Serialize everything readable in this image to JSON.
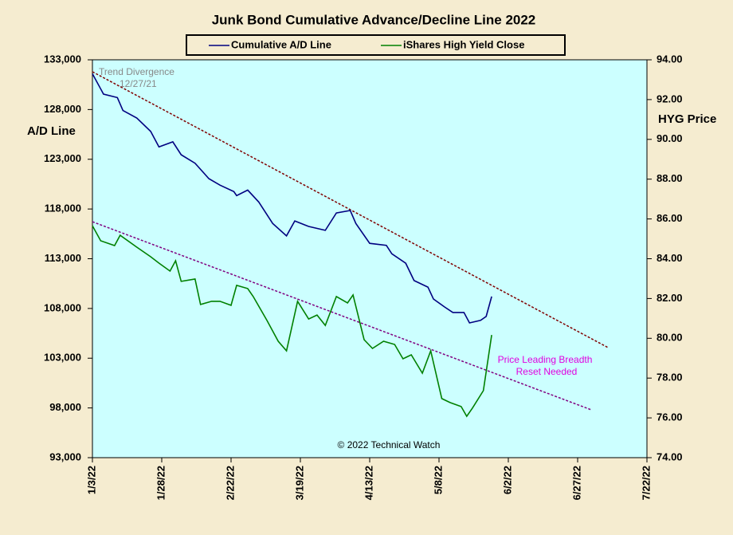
{
  "chart_data": {
    "type": "line",
    "title": "Junk Bond Cumulative  Advance/Decline  Line  2022",
    "ylabel": "A/D Line",
    "y2label": "HYG Price",
    "annotations": [
      "Trend Divergence",
      "12/27/21",
      "Price Leading  Breadth",
      "Reset Needed",
      "© 2022 Technical Watch"
    ],
    "xlim": [
      "1/3/22",
      "7/22/22"
    ],
    "xticks": [
      "1/3/22",
      "1/28/22",
      "2/22/22",
      "3/19/22",
      "4/13/22",
      "5/8/22",
      "6/2/22",
      "6/27/22",
      "7/22/22"
    ],
    "ylim": [
      93000,
      133000
    ],
    "yticks": [
      {
        "value": 93000,
        "label": "93,000"
      },
      {
        "value": 98000,
        "label": "98,000"
      },
      {
        "value": 103000,
        "label": "103,000"
      },
      {
        "value": 108000,
        "label": "108,000"
      },
      {
        "value": 113000,
        "label": "113,000"
      },
      {
        "value": 118000,
        "label": "118,000"
      },
      {
        "value": 123000,
        "label": "123,000"
      },
      {
        "value": 128000,
        "label": "128,000"
      },
      {
        "value": 133000,
        "label": "133,000"
      }
    ],
    "y2lim": [
      74,
      94
    ],
    "y2ticks": [
      {
        "value": 74,
        "label": "74.00"
      },
      {
        "value": 76,
        "label": "76.00"
      },
      {
        "value": 78,
        "label": "78.00"
      },
      {
        "value": 80,
        "label": "80.00"
      },
      {
        "value": 82,
        "label": "82.00"
      },
      {
        "value": 84,
        "label": "84.00"
      },
      {
        "value": 86,
        "label": "86.00"
      },
      {
        "value": 88,
        "label": "88.00"
      },
      {
        "value": 90,
        "label": "90.00"
      },
      {
        "value": 92,
        "label": "92.00"
      },
      {
        "value": 94,
        "label": "94.00"
      }
    ],
    "series": [
      {
        "name": "Cumulative A/D Line",
        "color": "#000080",
        "x": [
          "1/3/22",
          "1/7/22",
          "1/12/22",
          "1/14/22",
          "1/19/22",
          "1/24/22",
          "1/27/22",
          "2/1/22",
          "2/4/22",
          "2/9/22",
          "2/14/22",
          "2/18/22",
          "2/23/22",
          "2/24/22",
          "2/28/22",
          "3/4/22",
          "3/9/22",
          "3/14/22",
          "3/17/22",
          "3/22/22",
          "3/28/22",
          "4/1/22",
          "4/6/22",
          "4/8/22",
          "4/13/22",
          "4/19/22",
          "4/21/22",
          "4/26/22",
          "4/29/22",
          "5/4/22",
          "5/6/22",
          "5/10/22",
          "5/13/22",
          "5/17/22",
          "5/19/22",
          "5/23/22",
          "5/25/22",
          "5/27/22"
        ],
        "values": [
          131600,
          129550,
          129200,
          127900,
          127150,
          125800,
          124250,
          124750,
          123450,
          122600,
          121050,
          120400,
          119750,
          119350,
          119900,
          118700,
          116550,
          115300,
          116800,
          116250,
          115850,
          117600,
          117850,
          116550,
          114550,
          114350,
          113500,
          112550,
          110800,
          110150,
          108950,
          108150,
          107600,
          107600,
          106550,
          106800,
          107200,
          109200
        ]
      },
      {
        "name": "iShares High Yield Close",
        "color": "#008000",
        "axis": "y2",
        "x": [
          "1/3/22",
          "1/6/22",
          "1/11/22",
          "1/13/22",
          "1/19/22",
          "1/24/22",
          "1/27/22",
          "1/31/22",
          "2/2/22",
          "2/4/22",
          "2/9/22",
          "2/11/22",
          "2/15/22",
          "2/18/22",
          "2/22/22",
          "2/24/22",
          "2/28/22",
          "3/2/22",
          "3/7/22",
          "3/11/22",
          "3/14/22",
          "3/18/22",
          "3/22/22",
          "3/25/22",
          "3/28/22",
          "4/1/22",
          "4/5/22",
          "4/7/22",
          "4/11/22",
          "4/14/22",
          "4/18/22",
          "4/22/22",
          "4/25/22",
          "4/28/22",
          "5/2/22",
          "5/5/22",
          "5/9/22",
          "5/12/22",
          "5/16/22",
          "5/18/22",
          "5/20/22",
          "5/24/22",
          "5/27/22"
        ],
        "values": [
          85.66,
          84.9,
          84.66,
          85.18,
          84.58,
          84.1,
          83.78,
          83.38,
          83.9,
          82.86,
          82.98,
          81.7,
          81.86,
          81.86,
          81.66,
          82.66,
          82.5,
          82.1,
          80.89,
          79.85,
          79.37,
          81.86,
          80.97,
          81.17,
          80.65,
          82.1,
          81.78,
          82.18,
          79.93,
          79.49,
          79.85,
          79.69,
          78.97,
          79.17,
          78.25,
          79.37,
          76.97,
          76.77,
          76.57,
          76.08,
          76.48,
          77.37,
          80.17
        ]
      }
    ],
    "trendlines": [
      {
        "color": "#800000",
        "x": [
          "1/3/22",
          "7/8/22"
        ],
        "values": [
          131800,
          104060
        ]
      },
      {
        "color": "#800080",
        "axis": "y2",
        "x": [
          "1/3/22",
          "7/2/22"
        ],
        "values": [
          85.86,
          76.4
        ]
      }
    ]
  }
}
